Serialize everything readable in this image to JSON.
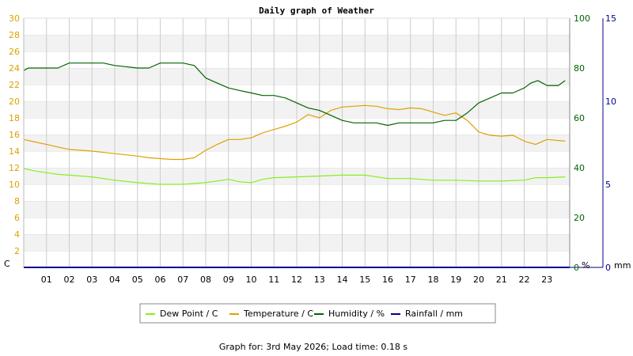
{
  "chart_data": {
    "type": "line",
    "title": "Daily graph of Weather",
    "x_ticks": [
      "01",
      "02",
      "03",
      "04",
      "05",
      "06",
      "07",
      "08",
      "09",
      "10",
      "11",
      "12",
      "13",
      "14",
      "15",
      "16",
      "17",
      "18",
      "19",
      "20",
      "21",
      "22",
      "23"
    ],
    "x_range": [
      0,
      24
    ],
    "axes": {
      "left": {
        "unit": "C",
        "range": [
          0,
          30
        ],
        "step": 2,
        "color": "#e0a000"
      },
      "right1": {
        "unit": "%",
        "range": [
          0,
          100
        ],
        "step": 20,
        "color": "#006400"
      },
      "right2": {
        "unit": "mm",
        "range": [
          0,
          15
        ],
        "step": 5,
        "color": "#00008b"
      }
    },
    "grid": true,
    "series": [
      {
        "name": "Dew Point / C",
        "axis": "left",
        "color": "#88ee22",
        "x": [
          0,
          0.5,
          1,
          1.5,
          2,
          3,
          4,
          5,
          6,
          7,
          7.5,
          8,
          8.5,
          9,
          9.5,
          10,
          10.5,
          11,
          12,
          13,
          14,
          15,
          16,
          17,
          18,
          19,
          20,
          21,
          22,
          22.5,
          23,
          23.8
        ],
        "y": [
          11.9,
          11.6,
          11.4,
          11.2,
          11.1,
          10.9,
          10.5,
          10.2,
          10.0,
          10.0,
          10.1,
          10.2,
          10.4,
          10.6,
          10.3,
          10.2,
          10.6,
          10.8,
          10.9,
          11.0,
          11.1,
          11.1,
          10.7,
          10.7,
          10.5,
          10.5,
          10.4,
          10.4,
          10.5,
          10.8,
          10.8,
          10.9
        ]
      },
      {
        "name": "Temperature / C",
        "axis": "left",
        "color": "#e0a000",
        "x": [
          0,
          0.5,
          1,
          1.5,
          2,
          3,
          4,
          5,
          5.5,
          6,
          6.5,
          7,
          7.5,
          8,
          8.5,
          9,
          9.5,
          10,
          10.5,
          11,
          11.5,
          12,
          12.5,
          13,
          13.5,
          14,
          14.5,
          15,
          15.5,
          16,
          16.5,
          17,
          17.5,
          18,
          18.5,
          19,
          19.5,
          20,
          20.5,
          21,
          21.5,
          22,
          22.5,
          23,
          23.8
        ],
        "y": [
          15.4,
          15.1,
          14.8,
          14.5,
          14.2,
          14.0,
          13.7,
          13.4,
          13.2,
          13.1,
          13.0,
          13.0,
          13.2,
          14.1,
          14.8,
          15.4,
          15.4,
          15.6,
          16.2,
          16.6,
          17.0,
          17.5,
          18.4,
          18.0,
          18.9,
          19.3,
          19.4,
          19.5,
          19.4,
          19.1,
          19.0,
          19.2,
          19.1,
          18.7,
          18.3,
          18.6,
          17.7,
          16.3,
          15.9,
          15.8,
          15.9,
          15.2,
          14.8,
          15.4,
          15.2
        ]
      },
      {
        "name": "Humidity / %",
        "axis": "right1",
        "color": "#006400",
        "x": [
          0,
          0.2,
          1,
          1.5,
          2,
          3,
          3.5,
          4,
          5,
          5.5,
          6,
          7,
          7.5,
          8,
          8.5,
          9,
          9.5,
          10,
          10.5,
          11,
          11.5,
          12,
          12.5,
          13,
          13.5,
          14,
          14.5,
          15,
          15.5,
          16,
          16.5,
          17,
          17.5,
          18,
          18.5,
          19,
          19.5,
          20,
          20.5,
          21,
          21.5,
          22,
          22.3,
          22.6,
          23,
          23.5,
          23.8
        ],
        "y": [
          79,
          80,
          80,
          80,
          82,
          82,
          82,
          81,
          80,
          80,
          82,
          82,
          81,
          76,
          74,
          72,
          71,
          70,
          69,
          69,
          68,
          66,
          64,
          63,
          61,
          59,
          58,
          58,
          58,
          57,
          58,
          58,
          58,
          58,
          59,
          59,
          62,
          66,
          68,
          70,
          70,
          72,
          74,
          75,
          73,
          73,
          75
        ]
      },
      {
        "name": "Rainfall / mm",
        "axis": "right2",
        "color": "#00008b",
        "x": [
          0,
          24
        ],
        "y": [
          0,
          0
        ]
      }
    ]
  },
  "footer": "Graph for: 3rd May 2026; Load time: 0.18 s"
}
